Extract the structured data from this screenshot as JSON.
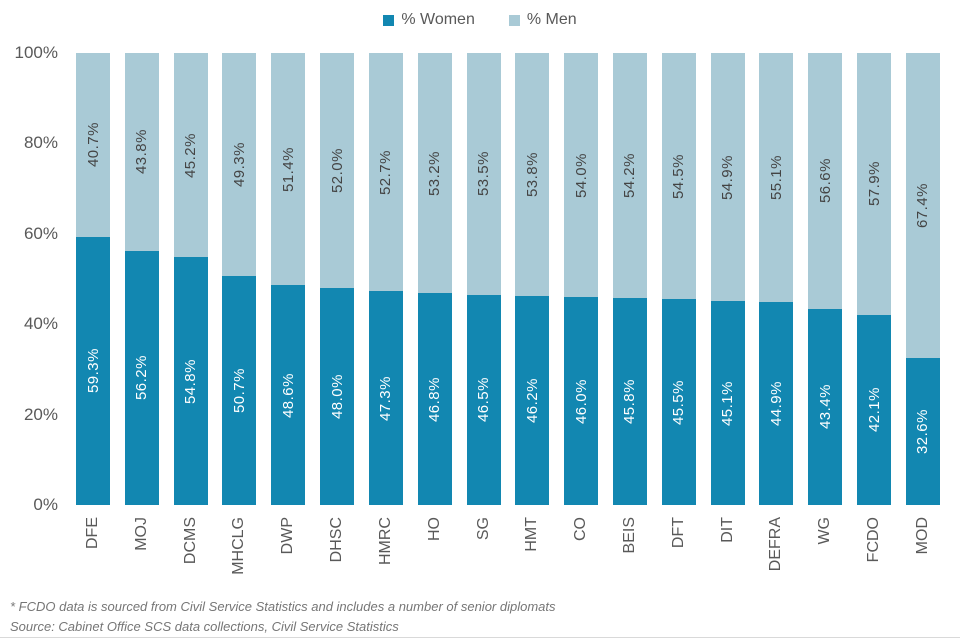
{
  "legend": {
    "women_label": "% Women",
    "men_label": "% Men"
  },
  "colors": {
    "women": "#1287B1",
    "men": "#A9CAD6",
    "axis_text": "#595959",
    "men_label_text": "#444444",
    "women_label_text": "#FFFFFF",
    "footnote_text": "#767676"
  },
  "chart_data": {
    "type": "bar",
    "stacked": true,
    "title": "",
    "xlabel": "",
    "ylabel": "",
    "ylim": [
      0,
      100
    ],
    "grid": false,
    "legend_position": "top-center",
    "yticks": [
      "100%",
      "80%",
      "60%",
      "40%",
      "20%",
      "0%"
    ],
    "categories": [
      "DFE",
      "MOJ",
      "DCMS",
      "MHCLG",
      "DWP",
      "DHSC",
      "HMRC",
      "HO",
      "SG",
      "HMT",
      "CO",
      "BEIS",
      "DFT",
      "DIT",
      "DEFRA",
      "WG",
      "FCDO",
      "MOD"
    ],
    "series": [
      {
        "name": "% Women",
        "values": [
          59.3,
          56.2,
          54.8,
          50.7,
          48.6,
          48.0,
          47.3,
          46.8,
          46.5,
          46.2,
          46.0,
          45.8,
          45.5,
          45.1,
          44.9,
          43.4,
          42.1,
          32.6
        ]
      },
      {
        "name": "% Men",
        "values": [
          40.7,
          43.8,
          45.2,
          49.3,
          51.4,
          52.0,
          52.7,
          53.2,
          53.5,
          53.8,
          54.0,
          54.2,
          54.5,
          54.9,
          55.1,
          56.6,
          57.9,
          67.4
        ]
      }
    ]
  },
  "footnotes": {
    "line1": "* FCDO data is sourced from Civil Service Statistics and includes a number of senior diplomats",
    "line2": "Source: Cabinet Office SCS data collections, Civil Service Statistics"
  }
}
